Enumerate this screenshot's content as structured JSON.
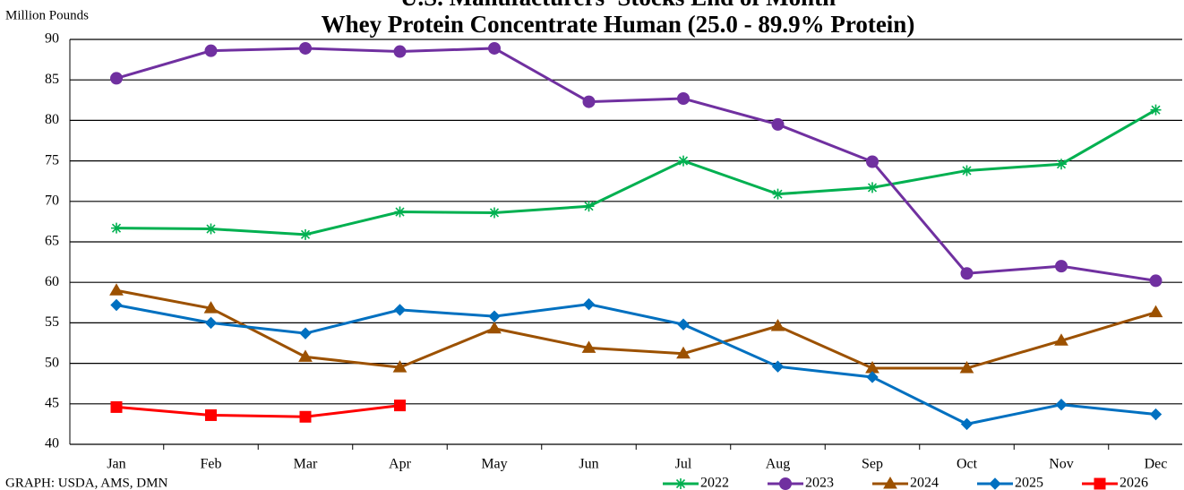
{
  "chart_data": {
    "type": "line",
    "title": "U.S. Manufacturers' Stocks End of Month",
    "subtitle": "Whey Protein Concentrate Human (25.0 - 89.9% Protein)",
    "y_label": "Million Pounds",
    "source": "GRAPH: USDA, AMS, DMN",
    "categories": [
      "Jan",
      "Feb",
      "Mar",
      "Apr",
      "May",
      "Jun",
      "Jul",
      "Aug",
      "Sep",
      "Oct",
      "Nov",
      "Dec"
    ],
    "ylim": [
      40,
      90
    ],
    "yticks": [
      40,
      45,
      50,
      55,
      60,
      65,
      70,
      75,
      80,
      85,
      90
    ],
    "grid": true,
    "legend": "bottom-right",
    "series": [
      {
        "name": "2022",
        "color": "#00b050",
        "marker": "asterisk",
        "values": [
          66.7,
          66.6,
          65.9,
          68.7,
          68.6,
          69.4,
          75.0,
          70.9,
          71.7,
          73.8,
          74.6,
          81.3
        ]
      },
      {
        "name": "2023",
        "color": "#7030a0",
        "marker": "circle",
        "values": [
          85.2,
          88.6,
          88.9,
          88.5,
          88.9,
          82.3,
          82.7,
          79.5,
          74.9,
          61.1,
          62.0,
          60.2
        ]
      },
      {
        "name": "2024",
        "color": "#9c5100",
        "marker": "triangle",
        "values": [
          59.0,
          56.8,
          50.8,
          49.5,
          54.3,
          51.9,
          51.2,
          54.6,
          49.4,
          49.4,
          52.8,
          56.3
        ]
      },
      {
        "name": "2025",
        "color": "#0070c0",
        "marker": "diamond",
        "values": [
          57.2,
          55.0,
          53.7,
          56.6,
          55.8,
          57.3,
          54.8,
          49.6,
          48.3,
          42.5,
          44.9,
          43.7
        ]
      },
      {
        "name": "2026",
        "color": "#ff0000",
        "marker": "square",
        "values": [
          44.6,
          43.6,
          43.4,
          44.8,
          null,
          null,
          null,
          null,
          null,
          null,
          null,
          null
        ]
      }
    ]
  }
}
